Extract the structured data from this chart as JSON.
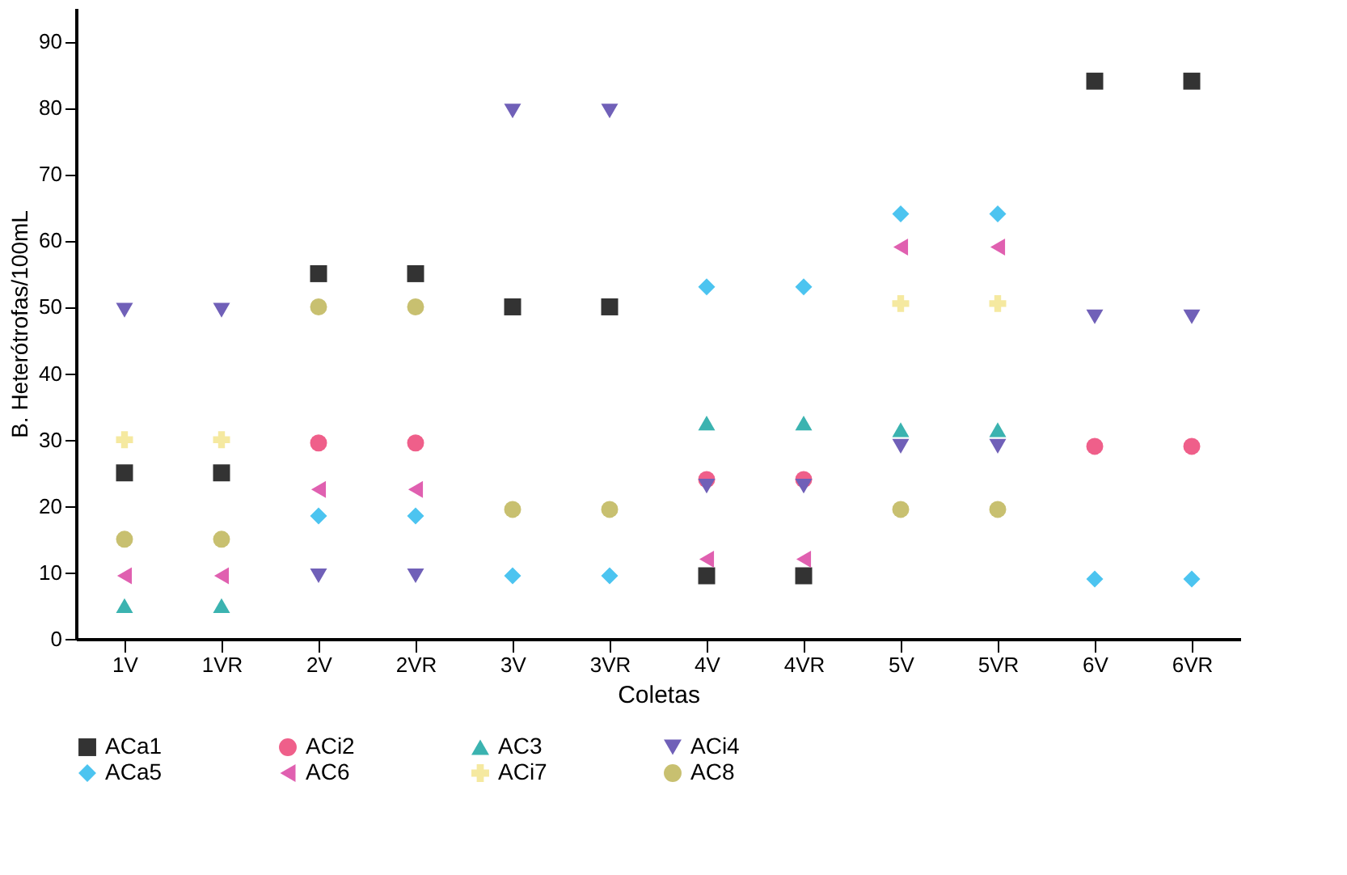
{
  "chart_data": {
    "type": "scatter",
    "xlabel": "Coletas",
    "ylabel": "B. Heterótrofas/100mL",
    "categories": [
      "1V",
      "1VR",
      "2V",
      "2VR",
      "3V",
      "3VR",
      "4V",
      "4VR",
      "5V",
      "5VR",
      "6V",
      "6VR"
    ],
    "ylim": [
      0,
      95
    ],
    "yticks": [
      0,
      10,
      20,
      30,
      40,
      50,
      60,
      70,
      80,
      90
    ],
    "grid": false,
    "legend": "bottom",
    "series": [
      {
        "name": "ACa1",
        "color": "#333333",
        "marker": "square",
        "values": [
          25,
          25,
          55,
          55,
          50,
          50,
          9.5,
          9.5,
          null,
          null,
          84,
          84
        ]
      },
      {
        "name": "ACi2",
        "color": "#ef5f8a",
        "marker": "circle",
        "values": [
          null,
          null,
          29.5,
          29.5,
          null,
          null,
          24,
          24,
          null,
          null,
          29,
          29
        ]
      },
      {
        "name": "AC3",
        "color": "#3bb3b0",
        "marker": "triangle",
        "values": [
          5,
          5,
          null,
          null,
          null,
          null,
          32.5,
          32.5,
          31.5,
          31.5,
          null,
          null
        ]
      },
      {
        "name": "ACi4",
        "color": "#7060b8",
        "marker": "triangle-down",
        "values": [
          49.5,
          49.5,
          9.5,
          9.5,
          79.5,
          79.5,
          23,
          23,
          29,
          29,
          48.5,
          48.5
        ]
      },
      {
        "name": "ACa5",
        "color": "#4cc4f0",
        "marker": "diamond",
        "values": [
          null,
          null,
          18.5,
          18.5,
          9.5,
          9.5,
          53,
          53,
          64,
          64,
          9,
          9
        ]
      },
      {
        "name": "AC6",
        "color": "#e060b0",
        "marker": "triangle-left",
        "values": [
          9.5,
          9.5,
          22.5,
          22.5,
          null,
          null,
          12,
          12,
          59,
          59,
          null,
          null
        ]
      },
      {
        "name": "ACi7",
        "color": "#f5e9a0",
        "marker": "cross",
        "values": [
          30,
          30,
          null,
          null,
          null,
          null,
          null,
          null,
          50.5,
          50.5,
          null,
          null
        ]
      },
      {
        "name": "AC8",
        "color": "#c8c070",
        "marker": "circle",
        "values": [
          15,
          15,
          50,
          50,
          19.5,
          19.5,
          null,
          null,
          19.5,
          19.5,
          null,
          null
        ]
      }
    ]
  }
}
